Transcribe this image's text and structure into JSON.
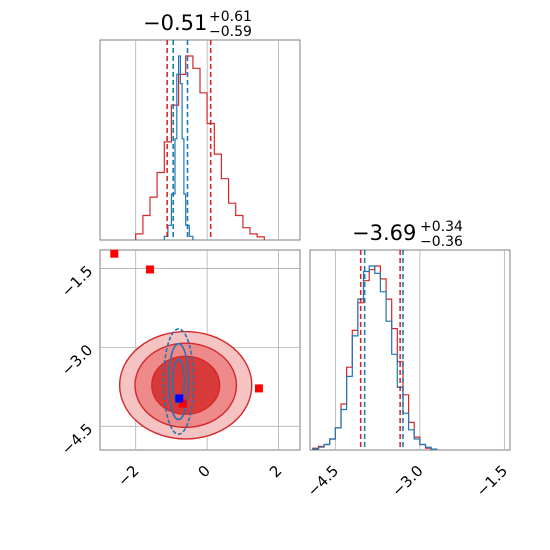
{
  "chart_data": [
    {
      "type": "histogram",
      "panel": "marginal-param-1",
      "title": {
        "main": "−0.51",
        "plus": "+0.61",
        "minus": "−0.59"
      },
      "xlim": [
        -3.0,
        2.6
      ],
      "xticks": [
        -2,
        0,
        2
      ],
      "xtick_labels": [
        "−2",
        "0",
        "2"
      ],
      "grid": true,
      "series": [
        {
          "color": "#d62728",
          "bin_edges": [
            -2.0,
            -1.8,
            -1.6,
            -1.4,
            -1.2,
            -1.0,
            -0.8,
            -0.6,
            -0.4,
            -0.2,
            0.0,
            0.2,
            0.4,
            0.6,
            0.8,
            1.0,
            1.2,
            1.4,
            1.6
          ],
          "counts": [
            0.01,
            0.04,
            0.07,
            0.11,
            0.16,
            0.22,
            0.27,
            0.3,
            0.28,
            0.24,
            0.19,
            0.14,
            0.1,
            0.06,
            0.04,
            0.02,
            0.01,
            0.005
          ],
          "quantiles": [
            -1.12,
            0.1
          ]
        },
        {
          "color": "#1f77b4",
          "bin_edges": [
            -1.2,
            -1.1,
            -1.0,
            -0.9,
            -0.85,
            -0.8,
            -0.75,
            -0.7,
            -0.65,
            -0.6,
            -0.5,
            -0.4
          ],
          "counts": [
            0.02,
            0.08,
            0.25,
            0.55,
            0.9,
            1.0,
            0.85,
            0.55,
            0.25,
            0.08,
            0.02
          ],
          "quantiles": [
            -0.95,
            -0.55
          ]
        }
      ]
    },
    {
      "type": "contour",
      "panel": "joint",
      "xlim": [
        -3.0,
        2.6
      ],
      "ylim": [
        -4.95,
        -1.15
      ],
      "xticks": [
        -2,
        0,
        2
      ],
      "xtick_labels": [
        "−2",
        "0",
        "2"
      ],
      "yticks": [
        -4.5,
        -3.0,
        -1.5
      ],
      "ytick_labels": [
        "−4.5",
        "−3.0",
        "−1.5"
      ],
      "grid": true,
      "red_contours": {
        "center": [
          -0.6,
          -3.72
        ],
        "levels": [
          {
            "rx": 1.85,
            "ry": 1.02,
            "fill": "#f6c3c3"
          },
          {
            "rx": 1.42,
            "ry": 0.8,
            "fill": "#ee8a8a"
          },
          {
            "rx": 0.95,
            "ry": 0.55,
            "fill": "#d83a3a"
          }
        ]
      },
      "blue_contours": {
        "center": [
          -0.8,
          -3.65
        ],
        "levels": [
          {
            "rx": 0.42,
            "ry": 1.0
          },
          {
            "rx": 0.28,
            "ry": 0.72
          },
          {
            "rx": 0.16,
            "ry": 0.42
          }
        ]
      },
      "markers": [
        {
          "x": -2.6,
          "y": -1.22,
          "color": "#ff0000"
        },
        {
          "x": -1.6,
          "y": -1.52,
          "color": "#ff0000"
        },
        {
          "x": 1.45,
          "y": -3.78,
          "color": "#ff0000"
        },
        {
          "x": -0.68,
          "y": -4.07,
          "color": "#ff0000"
        },
        {
          "x": -0.78,
          "y": -3.97,
          "color": "#0000ff"
        }
      ]
    },
    {
      "type": "histogram",
      "panel": "marginal-param-2",
      "title": {
        "main": "−3.69",
        "plus": "+0.34",
        "minus": "−0.36"
      },
      "xlim": [
        -4.95,
        -1.4
      ],
      "xticks": [
        -4.5,
        -3.0,
        -1.5
      ],
      "xtick_labels": [
        "−4.5",
        "−3.0",
        "−1.5"
      ],
      "grid": true,
      "series": [
        {
          "color": "#d62728",
          "bin_edges": [
            -4.9,
            -4.8,
            -4.7,
            -4.6,
            -4.5,
            -4.4,
            -4.3,
            -4.2,
            -4.1,
            -4.0,
            -3.9,
            -3.8,
            -3.7,
            -3.6,
            -3.5,
            -3.4,
            -3.3,
            -3.2,
            -3.1,
            -3.0,
            -2.9,
            -2.8
          ],
          "counts": [
            0.01,
            0.02,
            0.03,
            0.06,
            0.12,
            0.25,
            0.45,
            0.65,
            0.8,
            0.92,
            0.98,
            1.0,
            0.93,
            0.82,
            0.66,
            0.48,
            0.3,
            0.15,
            0.07,
            0.03,
            0.01
          ],
          "quantiles": [
            -4.05,
            -3.35
          ]
        },
        {
          "color": "#1f77b4",
          "bin_edges": [
            -4.9,
            -4.8,
            -4.7,
            -4.6,
            -4.5,
            -4.4,
            -4.3,
            -4.2,
            -4.1,
            -4.0,
            -3.9,
            -3.8,
            -3.7,
            -3.6,
            -3.5,
            -3.4,
            -3.3,
            -3.2,
            -3.1,
            -3.0,
            -2.9,
            -2.8,
            -2.7
          ],
          "counts": [
            0.005,
            0.015,
            0.03,
            0.06,
            0.12,
            0.22,
            0.4,
            0.62,
            0.82,
            0.97,
            1.0,
            0.96,
            0.86,
            0.7,
            0.52,
            0.34,
            0.2,
            0.11,
            0.06,
            0.03,
            0.015,
            0.005
          ],
          "quantiles": [
            -3.98,
            -3.3
          ]
        }
      ]
    }
  ]
}
